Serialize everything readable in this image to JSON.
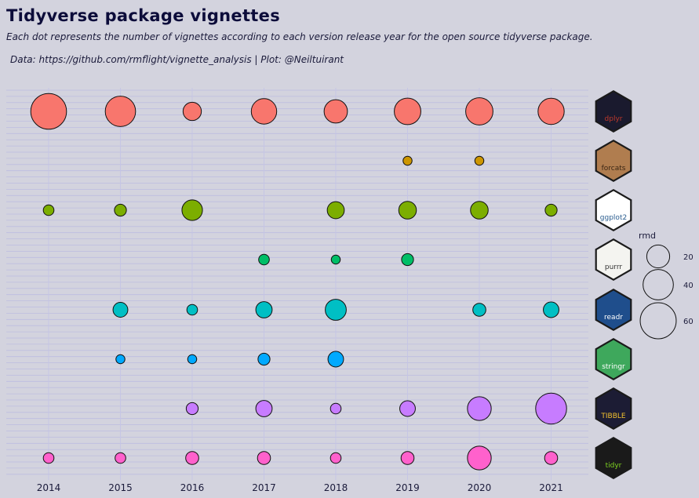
{
  "header": {
    "title": "Tidyverse package vignettes",
    "subtitle": "Each dot represents the number of vignettes according to each version release year for the open source tidyverse package.",
    "caption": "Data: https://github.com/rmflight/vignette_analysis | Plot: @Neiltuirant"
  },
  "chart_data": {
    "type": "scatter",
    "title": "Tidyverse package vignettes",
    "subtitle": "Each dot represents the number of vignettes according to each version release year for the open source tidyverse package.",
    "xlabel": "",
    "ylabel": "",
    "years": [
      2014,
      2015,
      2016,
      2017,
      2018,
      2019,
      2020,
      2021
    ],
    "grid": "horizontal minor lines",
    "size_legend": {
      "title": "rmd",
      "breaks": [
        20,
        40,
        60
      ],
      "placement": "right"
    },
    "series": [
      {
        "package": "dplyr",
        "hex_label": "dplyr",
        "hex_colors": [
          "#1a1a2e",
          "#c0392b"
        ],
        "color": "#f8766d",
        "values": [
          59,
          40,
          11,
          26,
          21,
          29,
          31,
          28
        ]
      },
      {
        "package": "forcats",
        "hex_label": "forcats",
        "hex_colors": [
          "#b07d4f",
          "#3b2614"
        ],
        "color": "#cd9600",
        "values": [
          null,
          null,
          null,
          null,
          null,
          1,
          1,
          null
        ]
      },
      {
        "package": "ggplot2",
        "hex_label": "ggplot2",
        "hex_colors": [
          "#ffffff",
          "#2a5d8f"
        ],
        "color": "#7cae00",
        "values": [
          2,
          3,
          15,
          null,
          9,
          10,
          10,
          3
        ]
      },
      {
        "package": "purrr",
        "hex_label": "purrr",
        "hex_colors": [
          "#f4f4f0",
          "#333333"
        ],
        "color": "#00be67",
        "values": [
          null,
          null,
          null,
          2,
          1,
          3,
          null,
          null
        ]
      },
      {
        "package": "readr",
        "hex_label": "readr",
        "hex_colors": [
          "#1f4e8c",
          "#ffffff"
        ],
        "color": "#00bfc4",
        "values": [
          null,
          6,
          2,
          8,
          null,
          null,
          4,
          7
        ]
      },
      {
        "package": "readr",
        "hex_label": "readr",
        "hex_colors": [
          "#1f4e8c",
          "#ffffff"
        ],
        "color": "#00bfc4",
        "values": [
          null,
          null,
          null,
          null,
          16,
          null,
          null,
          null
        ]
      },
      {
        "package": "stringr",
        "hex_label": "stringr",
        "hex_colors": [
          "#3ea85c",
          "#ffffff"
        ],
        "color": "#00a9ff",
        "values": [
          null,
          1,
          1,
          3,
          7,
          null,
          null,
          null
        ]
      },
      {
        "package": "tibble",
        "hex_label": "TIBBLE",
        "hex_colors": [
          "#1c1c34",
          "#f2c12e"
        ],
        "color": "#c77cff",
        "values": [
          null,
          null,
          3,
          8,
          2,
          7,
          22,
          42
        ]
      },
      {
        "package": "tidyr",
        "hex_label": "tidyr",
        "hex_colors": [
          "#1a1a1a",
          "#7ed321"
        ],
        "color": "#ff61cc",
        "values": [
          2,
          2,
          4,
          4,
          2,
          4,
          22,
          4
        ]
      }
    ]
  }
}
